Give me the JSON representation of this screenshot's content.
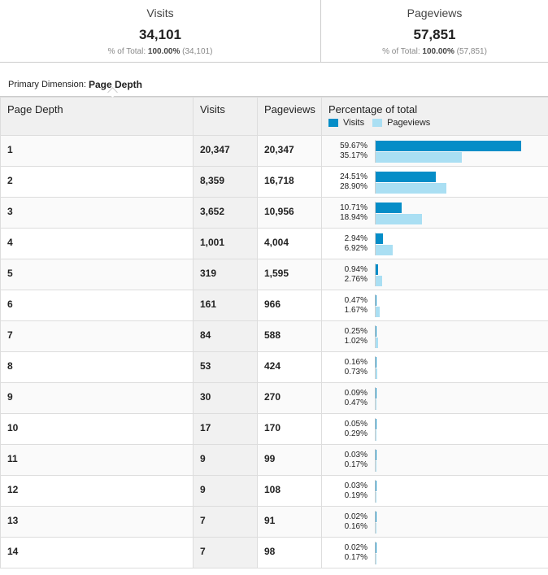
{
  "summary": {
    "visits": {
      "label": "Visits",
      "value": "34,101",
      "pct_prefix": "% of Total:",
      "pct": "100.00%",
      "total": "(34,101)"
    },
    "pageviews": {
      "label": "Pageviews",
      "value": "57,851",
      "pct_prefix": "% of Total:",
      "pct": "100.00%",
      "total": "(57,851)"
    }
  },
  "dimension": {
    "prefix": "Primary Dimension:",
    "value": "Page Depth"
  },
  "table": {
    "headers": {
      "dimension": "Page Depth",
      "visits": "Visits",
      "pageviews": "Pageviews",
      "percentage": "Percentage of total"
    },
    "legend": {
      "visits": "Visits",
      "pageviews": "Pageviews"
    },
    "colors": {
      "visits": "#058dc7",
      "pageviews": "#aadff3"
    }
  },
  "chart_data": {
    "type": "bar",
    "categories": [
      "1",
      "2",
      "3",
      "4",
      "5",
      "6",
      "7",
      "8",
      "9",
      "10",
      "11",
      "12",
      "13",
      "14"
    ],
    "series": [
      {
        "name": "Visits",
        "values": [
          20347,
          8359,
          3652,
          1001,
          319,
          161,
          84,
          53,
          30,
          17,
          9,
          9,
          7,
          7
        ],
        "display_values": [
          "20,347",
          "8,359",
          "3,652",
          "1,001",
          "319",
          "161",
          "84",
          "53",
          "30",
          "17",
          "9",
          "9",
          "7",
          "7"
        ],
        "pct": [
          59.67,
          24.51,
          10.71,
          2.94,
          0.94,
          0.47,
          0.25,
          0.16,
          0.09,
          0.05,
          0.03,
          0.03,
          0.02,
          0.02
        ],
        "pct_labels": [
          "59.67%",
          "24.51%",
          "10.71%",
          "2.94%",
          "0.94%",
          "0.47%",
          "0.25%",
          "0.16%",
          "0.09%",
          "0.05%",
          "0.03%",
          "0.03%",
          "0.02%",
          "0.02%"
        ]
      },
      {
        "name": "Pageviews",
        "values": [
          20347,
          16718,
          10956,
          4004,
          1595,
          966,
          588,
          424,
          270,
          170,
          99,
          108,
          91,
          98
        ],
        "display_values": [
          "20,347",
          "16,718",
          "10,956",
          "4,004",
          "1,595",
          "966",
          "588",
          "424",
          "270",
          "170",
          "99",
          "108",
          "91",
          "98"
        ],
        "pct": [
          35.17,
          28.9,
          18.94,
          6.92,
          2.76,
          1.67,
          1.02,
          0.73,
          0.47,
          0.29,
          0.17,
          0.19,
          0.16,
          0.17
        ],
        "pct_labels": [
          "35.17%",
          "28.90%",
          "18.94%",
          "6.92%",
          "2.76%",
          "1.67%",
          "1.02%",
          "0.73%",
          "0.47%",
          "0.29%",
          "0.17%",
          "0.19%",
          "0.16%",
          "0.17%"
        ]
      }
    ]
  }
}
